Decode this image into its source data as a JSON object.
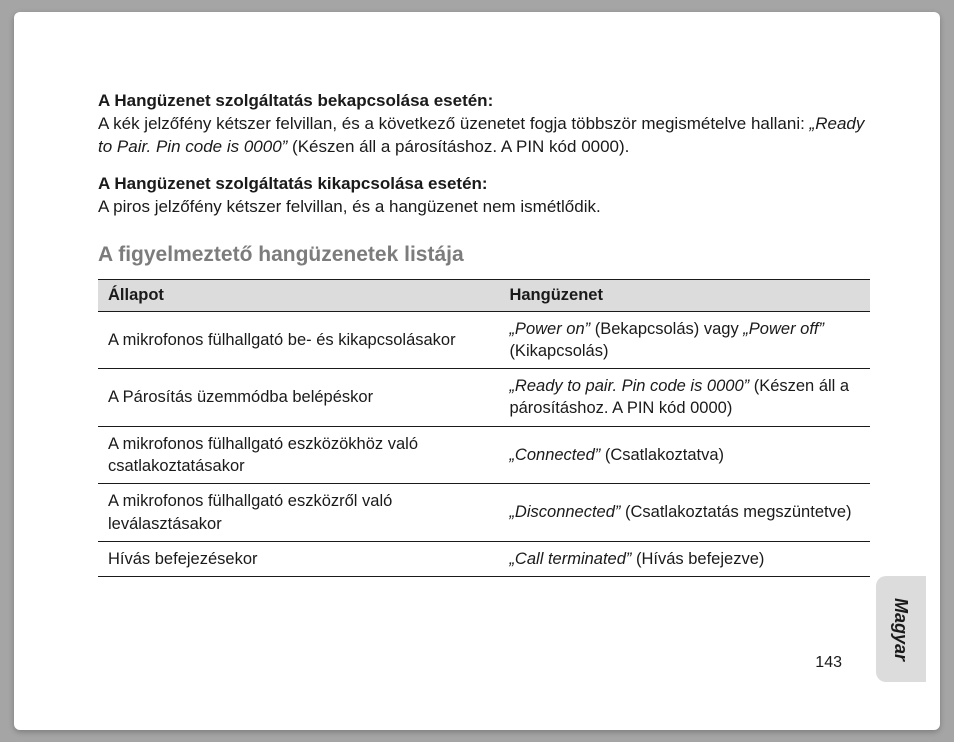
{
  "section1": {
    "heading": "A Hangüzenet szolgáltatás bekapcsolása esetén:",
    "text_lead": "A kék jelzőfény kétszer felvillan, és a következő üzenetet fogja többször megismételve hallani: ",
    "text_italic": "„Ready to Pair. Pin code is 0000”",
    "text_tail": " (Készen áll a párosításhoz. A PIN kód 0000)."
  },
  "section2": {
    "heading": "A Hangüzenet szolgáltatás kikapcsolása esetén:",
    "text": "A piros jelzőfény kétszer felvillan, és a hangüzenet nem ismétlődik."
  },
  "section_title": "A figyelmeztető hangüzenetek listája",
  "table": {
    "header_col1": "Állapot",
    "header_col2": "Hangüzenet",
    "rows": [
      {
        "status": "A mikrofonos fülhallgató be- és kikapcsolásakor",
        "voice_i1": "„Power on”",
        "voice_t1": " (Bekapcsolás) vagy ",
        "voice_i2": "„Power off”",
        "voice_t2": " (Kikapcsolás)"
      },
      {
        "status": "A Párosítás üzemmódba belépéskor",
        "voice_i1": "„Ready to pair. Pin code is 0000”",
        "voice_t1": " (Készen áll a párosításhoz. A PIN kód 0000)",
        "voice_i2": "",
        "voice_t2": ""
      },
      {
        "status": "A mikrofonos fülhallgató eszközökhöz való csatlakoztatásakor",
        "voice_i1": "„Connected”",
        "voice_t1": " (Csatlakoztatva)",
        "voice_i2": "",
        "voice_t2": ""
      },
      {
        "status": "A mikrofonos fülhallgató eszközről való leválasztásakor",
        "voice_i1": "„Disconnected”",
        "voice_t1": " (Csatlakoztatás megszüntetve)",
        "voice_i2": "",
        "voice_t2": ""
      },
      {
        "status": "Hívás befejezésekor",
        "voice_i1": "„Call terminated”",
        "voice_t1": " (Hívás befejezve)",
        "voice_i2": "",
        "voice_t2": ""
      }
    ]
  },
  "page_number": "143",
  "lang_tab": "Magyar"
}
